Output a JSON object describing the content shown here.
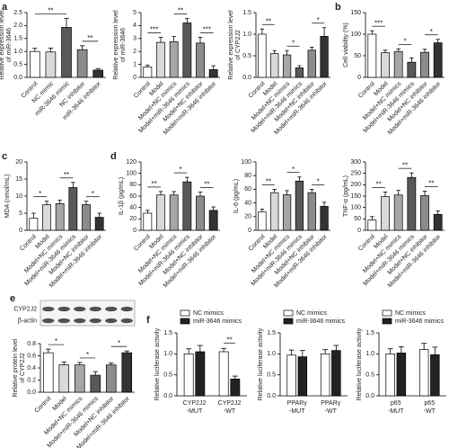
{
  "chart_data": [
    {
      "type": "bar",
      "panel_label": "a",
      "ylabel": [
        "Relative expression level",
        "of miR-3646"
      ],
      "categories": [
        "Control",
        "NC mimic",
        "miR-3646 mimic",
        "NC inhibitor",
        "miR-3646 inhibitor"
      ],
      "values": [
        1.0,
        0.98,
        1.93,
        1.07,
        0.28
      ],
      "errors": [
        0.12,
        0.15,
        0.35,
        0.15,
        0.06
      ],
      "colors": [
        "#ffffff",
        "#d9d9d9",
        "#595959",
        "#8c8c8c",
        "#333333"
      ],
      "ylim": [
        0,
        2.5
      ],
      "yticks": [
        {
          "value": 0,
          "label": "0.0"
        },
        0.5,
        {
          "value": 1,
          "label": "1.0"
        },
        1.5,
        {
          "value": 2,
          "label": "2.0"
        },
        2.5
      ],
      "significance": [
        {
          "text": "**",
          "from": 0,
          "to": 2
        },
        {
          "text": "**",
          "from": 3,
          "to": 4
        }
      ]
    },
    {
      "type": "bar",
      "ylabel": [
        "Relative expression level",
        "of miR-3646"
      ],
      "categories": [
        "Control",
        "Model",
        "Model+NC mimics",
        "Model+miR-3646 mimics",
        "Model+NC inhibitor",
        "Model+miR-3646 inhibitor"
      ],
      "values": [
        0.8,
        2.7,
        2.75,
        4.2,
        2.65,
        0.6
      ],
      "errors": [
        0.15,
        0.4,
        0.4,
        0.35,
        0.45,
        0.3
      ],
      "colors": [
        "#ffffff",
        "#d9d9d9",
        "#a6a6a6",
        "#595959",
        "#8c8c8c",
        "#333333"
      ],
      "ylim": [
        0,
        5
      ],
      "yticks": [
        0,
        1,
        2,
        3,
        4,
        5
      ],
      "significance": [
        {
          "text": "***",
          "from": 0,
          "to": 1
        },
        {
          "text": "**",
          "from": 2,
          "to": 3
        },
        {
          "text": "***",
          "from": 4,
          "to": 5
        }
      ]
    },
    {
      "type": "bar",
      "ylabel": [
        "Relative expression level",
        "of CYP2J2"
      ],
      "categories": [
        "Control",
        "Model",
        "Model+NC mimics",
        "Model+miR-3646 mimics",
        "Model+NC inhibitor",
        "Model+miR-3646 inhibitor"
      ],
      "values": [
        1.0,
        0.55,
        0.52,
        0.22,
        0.63,
        0.95
      ],
      "errors": [
        0.12,
        0.07,
        0.1,
        0.05,
        0.07,
        0.2
      ],
      "colors": [
        "#ffffff",
        "#d9d9d9",
        "#a6a6a6",
        "#595959",
        "#8c8c8c",
        "#333333"
      ],
      "ylim": [
        0,
        1.5
      ],
      "yticks": [
        {
          "value": 0,
          "label": "0.0"
        },
        0.5,
        {
          "value": 1,
          "label": "1.0"
        },
        1.5
      ],
      "significance": [
        {
          "text": "**",
          "from": 0,
          "to": 1
        },
        {
          "text": "*",
          "from": 2,
          "to": 3
        },
        {
          "text": "*",
          "from": 4,
          "to": 5
        }
      ]
    },
    {
      "type": "bar",
      "panel_label": "b",
      "ylabel": [
        "Cell viability (%)"
      ],
      "categories": [
        "Control",
        "Model",
        "Model+NC mimics",
        "Model+miR-3646 mimics",
        "Model+NC inhibitor",
        "Model+miR-3646 inhibitor"
      ],
      "values": [
        100,
        57,
        60,
        35,
        58,
        80
      ],
      "errors": [
        8,
        6,
        6,
        10,
        7,
        8
      ],
      "colors": [
        "#ffffff",
        "#d9d9d9",
        "#a6a6a6",
        "#595959",
        "#8c8c8c",
        "#333333"
      ],
      "ylim": [
        0,
        150
      ],
      "yticks": [
        0,
        50,
        100,
        150
      ],
      "significance": [
        {
          "text": "***",
          "from": 0,
          "to": 1
        },
        {
          "text": "*",
          "from": 2,
          "to": 3
        },
        {
          "text": "*",
          "from": 4,
          "to": 5
        }
      ]
    },
    {
      "type": "bar",
      "panel_label": "c",
      "ylabel": [
        "MDA (nmol/mL)"
      ],
      "categories": [
        "Control",
        "Model",
        "Model+NC mimics",
        "Model+miR-3646 mimics",
        "Model+NC inhibitor",
        "Model+miR-3646 inhibitor"
      ],
      "values": [
        3.5,
        7.5,
        7.8,
        12.5,
        7.5,
        3.8
      ],
      "errors": [
        1.5,
        1,
        1,
        1.5,
        1,
        1.2
      ],
      "colors": [
        "#ffffff",
        "#d9d9d9",
        "#a6a6a6",
        "#595959",
        "#8c8c8c",
        "#333333"
      ],
      "ylim": [
        0,
        20
      ],
      "yticks": [
        0,
        5,
        10,
        15,
        20
      ],
      "significance": [
        {
          "text": "*",
          "from": 0,
          "to": 1
        },
        {
          "text": "**",
          "from": 2,
          "to": 3
        },
        {
          "text": "*",
          "from": 4,
          "to": 5
        }
      ]
    },
    {
      "type": "bar",
      "panel_label": "d",
      "ylabel": [
        "IL-1β (pg/mL)"
      ],
      "categories": [
        "Control",
        "Model",
        "Model+NC mimics",
        "Model+miR-3646 mimics",
        "Model+NC inhibitor",
        "Model+miR-3646 inhibitor"
      ],
      "values": [
        30,
        62,
        62,
        85,
        60,
        35
      ],
      "errors": [
        5,
        6,
        6,
        8,
        7,
        6
      ],
      "colors": [
        "#ffffff",
        "#d9d9d9",
        "#a6a6a6",
        "#595959",
        "#8c8c8c",
        "#333333"
      ],
      "ylim": [
        0,
        120
      ],
      "yticks": [
        0,
        20,
        40,
        60,
        80,
        100,
        120
      ],
      "significance": [
        {
          "text": "**",
          "from": 0,
          "to": 1
        },
        {
          "text": "*",
          "from": 2,
          "to": 3
        },
        {
          "text": "**",
          "from": 4,
          "to": 5
        }
      ]
    },
    {
      "type": "bar",
      "ylabel": [
        "IL-6 (pg/mL)"
      ],
      "categories": [
        "Control",
        "Model",
        "Model+NC mimics",
        "Model+miR-3646 mimics",
        "Model+NC inhibitor",
        "Model+miR-3646 inhibitor"
      ],
      "values": [
        27,
        55,
        52,
        72,
        55,
        35
      ],
      "errors": [
        4,
        5,
        6,
        6,
        5,
        6
      ],
      "colors": [
        "#ffffff",
        "#d9d9d9",
        "#a6a6a6",
        "#595959",
        "#8c8c8c",
        "#333333"
      ],
      "ylim": [
        0,
        100
      ],
      "yticks": [
        0,
        20,
        40,
        60,
        80,
        100
      ],
      "significance": [
        {
          "text": "**",
          "from": 0,
          "to": 1
        },
        {
          "text": "*",
          "from": 2,
          "to": 3
        },
        {
          "text": "*",
          "from": 4,
          "to": 5
        }
      ]
    },
    {
      "type": "bar",
      "ylabel": [
        "TNF-α (pg/mL)"
      ],
      "categories": [
        "Control",
        "Model",
        "Model+NC mimics",
        "Model+miR-3646 mimics",
        "Model+NC inhibitor",
        "Model+miR-3646 inhibitor"
      ],
      "values": [
        45,
        148,
        155,
        232,
        152,
        70
      ],
      "errors": [
        15,
        20,
        20,
        20,
        20,
        15
      ],
      "colors": [
        "#ffffff",
        "#d9d9d9",
        "#a6a6a6",
        "#595959",
        "#8c8c8c",
        "#333333"
      ],
      "ylim": [
        0,
        300
      ],
      "yticks": [
        0,
        50,
        100,
        150,
        200,
        250,
        300
      ],
      "significance": [
        {
          "text": "**",
          "from": 0,
          "to": 1
        },
        {
          "text": "**",
          "from": 2,
          "to": 3
        },
        {
          "text": "**",
          "from": 4,
          "to": 5
        }
      ]
    },
    {
      "type": "bar",
      "panel_label": "e",
      "blot_labels": [
        "CYP2J2",
        "β-actin"
      ],
      "ylabel": [
        "Relative protein level",
        "of CYP2J2"
      ],
      "categories": [
        "Control",
        "Model",
        "Model+NC mimics",
        "Model+miR-3646 mimics",
        "Model+NC inhibitor",
        "Model+miR-3646 inhibitor"
      ],
      "values": [
        0.65,
        0.45,
        0.45,
        0.28,
        0.45,
        0.65
      ],
      "errors": [
        0.06,
        0.05,
        0.04,
        0.06,
        0.03,
        0.03
      ],
      "colors": [
        "#ffffff",
        "#d9d9d9",
        "#a6a6a6",
        "#595959",
        "#8c8c8c",
        "#333333"
      ],
      "ylim": [
        0,
        0.8
      ],
      "yticks": [
        {
          "value": 0,
          "label": "0.0"
        },
        0.2,
        0.4,
        0.6,
        0.8
      ],
      "significance": [
        {
          "text": "*",
          "from": 0,
          "to": 1
        },
        {
          "text": "*",
          "from": 2,
          "to": 3
        },
        {
          "text": "*",
          "from": 4,
          "to": 5
        }
      ]
    },
    {
      "type": "grouped_bar",
      "panel_label": "f",
      "ylabel": [
        "Relative luciferase activity"
      ],
      "categories": [
        [
          "CYP2J2",
          "-MUT"
        ],
        [
          "CYP2J2",
          "-WT"
        ]
      ],
      "series": [
        {
          "name": "NC mimics",
          "color": "#ffffff",
          "values": [
            1.0,
            1.05
          ],
          "errors": [
            0.12,
            0.08
          ]
        },
        {
          "name": "miR-3646 mimics",
          "color": "#222222",
          "values": [
            1.05,
            0.4
          ],
          "errors": [
            0.15,
            0.07
          ]
        }
      ],
      "ylim": [
        0,
        1.5
      ],
      "yticks": [
        {
          "value": 0,
          "label": "0.0"
        },
        0.5,
        {
          "value": 1,
          "label": "1.0"
        },
        1.5
      ],
      "significance": [
        {
          "text": "**",
          "category": 1
        }
      ]
    },
    {
      "type": "grouped_bar",
      "ylabel": [
        "Relative luciferase activity"
      ],
      "categories": [
        [
          "PPARγ",
          "-MUT"
        ],
        [
          "PPARγ",
          "-WT"
        ]
      ],
      "series": [
        {
          "name": "NC mimics",
          "color": "#ffffff",
          "values": [
            0.97,
            1.0
          ],
          "errors": [
            0.12,
            0.1
          ]
        },
        {
          "name": "miR-3646 mimics",
          "color": "#222222",
          "values": [
            0.93,
            1.08
          ],
          "errors": [
            0.15,
            0.12
          ]
        }
      ],
      "ylim": [
        0,
        1.5
      ],
      "yticks": [
        {
          "value": 0,
          "label": "0.0"
        },
        0.5,
        {
          "value": 1,
          "label": "1.0"
        },
        1.5
      ]
    },
    {
      "type": "grouped_bar",
      "ylabel": [
        "Relative luciferase activity"
      ],
      "categories": [
        [
          "p65",
          "-MUT"
        ],
        [
          "p65",
          "-WT"
        ]
      ],
      "series": [
        {
          "name": "NC mimics",
          "color": "#ffffff",
          "values": [
            1.0,
            1.1
          ],
          "errors": [
            0.12,
            0.15
          ]
        },
        {
          "name": "miR-3646 mimics",
          "color": "#222222",
          "values": [
            1.02,
            0.98
          ],
          "errors": [
            0.15,
            0.18
          ]
        }
      ],
      "ylim": [
        0,
        1.5
      ],
      "yticks": [
        {
          "value": 0,
          "label": "0.0"
        },
        0.5,
        {
          "value": 1,
          "label": "1.0"
        },
        1.5
      ]
    }
  ]
}
